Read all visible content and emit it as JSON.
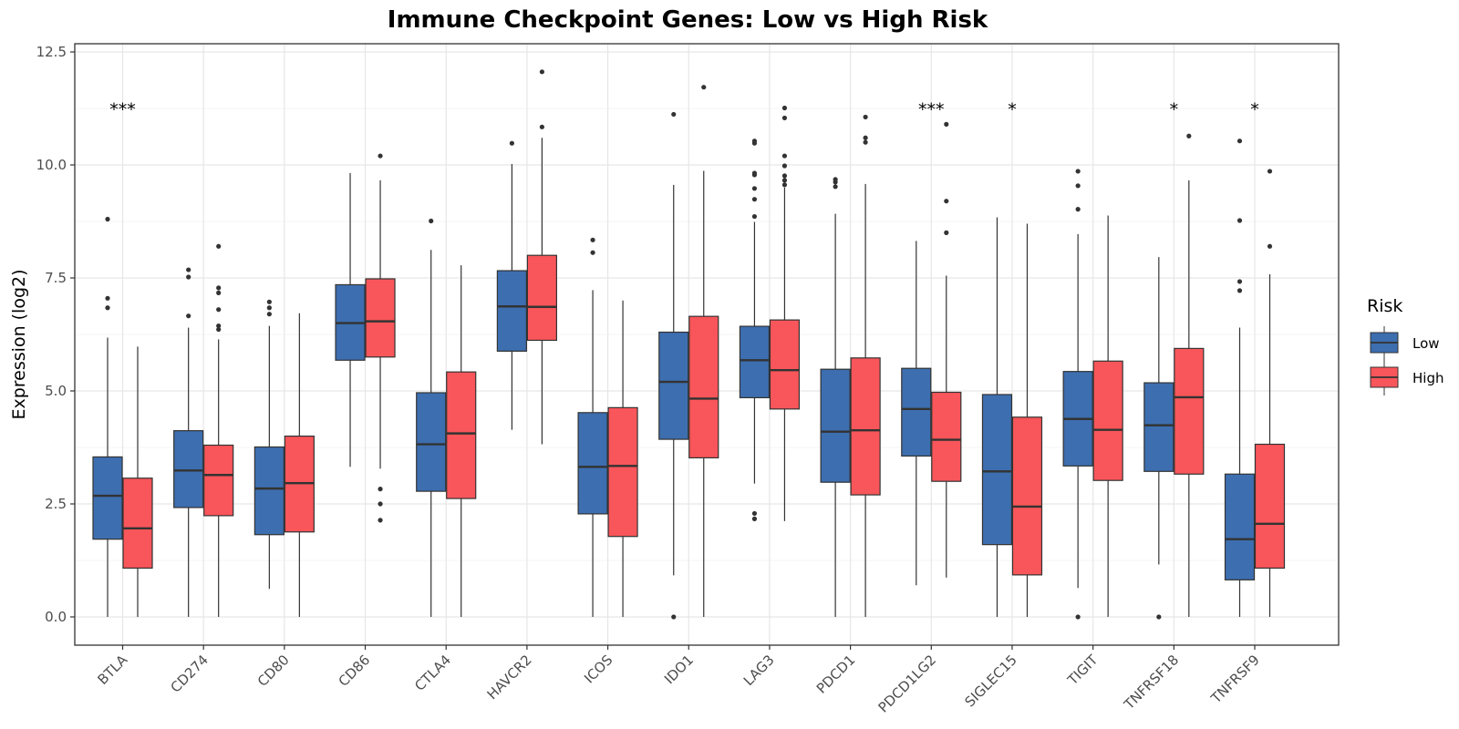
{
  "chart_data": {
    "type": "box",
    "title": "Immune Checkpoint Genes: Low vs High Risk",
    "xlabel": "",
    "ylabel": "Expression (log2)",
    "ylim": [
      -0.45,
      12.65
    ],
    "yticks": [
      "0.0",
      "2.5",
      "5.0",
      "7.5",
      "10.0",
      "12.5"
    ],
    "ytick_values": [
      0,
      2.5,
      5,
      7.5,
      10,
      12.5
    ],
    "grid": true,
    "legend": {
      "title": "Risk",
      "position": "right"
    },
    "categories": [
      "BTLA",
      "CD274",
      "CD80",
      "CD86",
      "CTLA4",
      "HAVCR2",
      "ICOS",
      "IDO1",
      "LAG3",
      "PDCD1",
      "PDCD1LG2",
      "SIGLEC15",
      "TIGIT",
      "TNFRSF18",
      "TNFRSF9"
    ],
    "significance": [
      "***",
      "",
      "",
      "",
      "",
      "",
      "",
      "",
      "",
      "",
      "***",
      "*",
      "",
      "*",
      "*"
    ],
    "series": [
      {
        "name": "Low",
        "color": "#3D6EAF",
        "boxes": [
          {
            "whisker_low": 0.0,
            "q1": 1.72,
            "median": 2.68,
            "q3": 3.54,
            "whisker_high": 6.18,
            "outliers": [
              6.84,
              7.05,
              8.8
            ]
          },
          {
            "whisker_low": 0.0,
            "q1": 2.42,
            "median": 3.24,
            "q3": 4.12,
            "whisker_high": 6.4,
            "outliers": [
              6.66,
              7.52,
              7.68
            ]
          },
          {
            "whisker_low": 0.62,
            "q1": 1.82,
            "median": 2.84,
            "q3": 3.76,
            "whisker_high": 6.44,
            "outliers": [
              6.7,
              6.84,
              6.97
            ]
          },
          {
            "whisker_low": 3.32,
            "q1": 5.68,
            "median": 6.5,
            "q3": 7.35,
            "whisker_high": 9.82,
            "outliers": []
          },
          {
            "whisker_low": 0.0,
            "q1": 2.78,
            "median": 3.82,
            "q3": 4.96,
            "whisker_high": 8.12,
            "outliers": [
              8.76
            ]
          },
          {
            "whisker_low": 4.14,
            "q1": 5.88,
            "median": 6.87,
            "q3": 7.66,
            "whisker_high": 10.02,
            "outliers": [
              10.48
            ]
          },
          {
            "whisker_low": 0.0,
            "q1": 2.28,
            "median": 3.32,
            "q3": 4.52,
            "whisker_high": 7.23,
            "outliers": [
              8.06,
              8.34
            ]
          },
          {
            "whisker_low": 0.92,
            "q1": 3.93,
            "median": 5.2,
            "q3": 6.3,
            "whisker_high": 9.56,
            "outliers": [
              0.0,
              11.12
            ]
          },
          {
            "whisker_low": 2.95,
            "q1": 4.85,
            "median": 5.68,
            "q3": 6.43,
            "whisker_high": 8.74,
            "outliers": [
              2.17,
              2.29,
              8.86,
              9.24,
              9.48,
              9.78,
              9.82,
              10.48,
              10.53
            ]
          },
          {
            "whisker_low": 0.0,
            "q1": 2.98,
            "median": 4.1,
            "q3": 5.48,
            "whisker_high": 8.92,
            "outliers": [
              9.52,
              9.62,
              9.68
            ]
          },
          {
            "whisker_low": 0.7,
            "q1": 3.56,
            "median": 4.6,
            "q3": 5.5,
            "whisker_high": 8.32,
            "outliers": []
          },
          {
            "whisker_low": 0.0,
            "q1": 1.6,
            "median": 3.22,
            "q3": 4.92,
            "whisker_high": 8.84,
            "outliers": []
          },
          {
            "whisker_low": 0.64,
            "q1": 3.34,
            "median": 4.38,
            "q3": 5.43,
            "whisker_high": 8.47,
            "outliers": [
              0.0,
              9.02,
              9.54,
              9.86
            ]
          },
          {
            "whisker_low": 1.16,
            "q1": 3.22,
            "median": 4.24,
            "q3": 5.18,
            "whisker_high": 7.96,
            "outliers": [
              0.0
            ]
          },
          {
            "whisker_low": 0.0,
            "q1": 0.82,
            "median": 1.72,
            "q3": 3.16,
            "whisker_high": 6.4,
            "outliers": [
              7.22,
              7.42,
              8.77,
              10.53
            ]
          }
        ]
      },
      {
        "name": "High",
        "color": "#F8565A",
        "boxes": [
          {
            "whisker_low": 0.0,
            "q1": 1.08,
            "median": 1.96,
            "q3": 3.07,
            "whisker_high": 5.98,
            "outliers": []
          },
          {
            "whisker_low": 0.0,
            "q1": 2.24,
            "median": 3.14,
            "q3": 3.8,
            "whisker_high": 6.14,
            "outliers": [
              6.36,
              6.44,
              6.8,
              7.17,
              7.28,
              8.2
            ]
          },
          {
            "whisker_low": 0.0,
            "q1": 1.88,
            "median": 2.96,
            "q3": 4.0,
            "whisker_high": 6.72,
            "outliers": []
          },
          {
            "whisker_low": 3.28,
            "q1": 5.75,
            "median": 6.54,
            "q3": 7.48,
            "whisker_high": 9.66,
            "outliers": [
              2.14,
              2.5,
              2.83,
              10.2
            ]
          },
          {
            "whisker_low": 0.0,
            "q1": 2.62,
            "median": 4.06,
            "q3": 5.42,
            "whisker_high": 7.78,
            "outliers": []
          },
          {
            "whisker_low": 3.82,
            "q1": 6.12,
            "median": 6.86,
            "q3": 8.0,
            "whisker_high": 10.6,
            "outliers": [
              10.84,
              12.06
            ]
          },
          {
            "whisker_low": 0.0,
            "q1": 1.78,
            "median": 3.34,
            "q3": 4.63,
            "whisker_high": 7.0,
            "outliers": []
          },
          {
            "whisker_low": 0.0,
            "q1": 3.52,
            "median": 4.83,
            "q3": 6.65,
            "whisker_high": 9.87,
            "outliers": [
              11.72
            ]
          },
          {
            "whisker_low": 2.12,
            "q1": 4.6,
            "median": 5.46,
            "q3": 6.57,
            "whisker_high": 9.5,
            "outliers": [
              9.56,
              9.66,
              9.76,
              9.98,
              10.2,
              11.04,
              11.26
            ]
          },
          {
            "whisker_low": 0.0,
            "q1": 2.7,
            "median": 4.13,
            "q3": 5.73,
            "whisker_high": 9.58,
            "outliers": [
              10.5,
              10.6,
              11.06
            ]
          },
          {
            "whisker_low": 0.87,
            "q1": 3.0,
            "median": 3.92,
            "q3": 4.97,
            "whisker_high": 7.55,
            "outliers": [
              8.5,
              9.2,
              10.9
            ]
          },
          {
            "whisker_low": 0.0,
            "q1": 0.93,
            "median": 2.44,
            "q3": 4.42,
            "whisker_high": 8.7,
            "outliers": []
          },
          {
            "whisker_low": 0.0,
            "q1": 3.02,
            "median": 4.14,
            "q3": 5.66,
            "whisker_high": 8.88,
            "outliers": []
          },
          {
            "whisker_low": 0.0,
            "q1": 3.16,
            "median": 4.86,
            "q3": 5.94,
            "whisker_high": 9.66,
            "outliers": [
              10.64
            ]
          },
          {
            "whisker_low": 0.0,
            "q1": 1.08,
            "median": 2.06,
            "q3": 3.82,
            "whisker_high": 7.58,
            "outliers": [
              8.2,
              9.86
            ]
          }
        ]
      }
    ]
  }
}
